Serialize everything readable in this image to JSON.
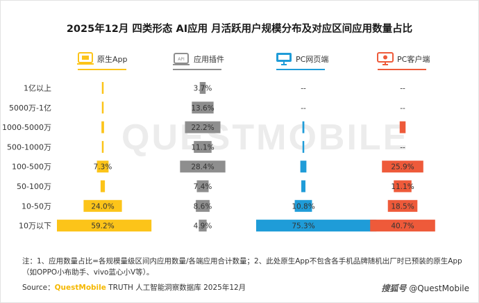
{
  "title": "2025年12月 四类形态 AI应用 月活跃用户规模分布及对应区间应用数量占比",
  "watermark": "QUESTMOBILE",
  "colors": {
    "native": "#fcc419",
    "plugin": "#8e8e8e",
    "pcweb": "#1f9cd8",
    "pcclient": "#ee5a3a"
  },
  "chart_data": {
    "type": "bar",
    "orientation": "horizontal",
    "layout": "butterfly",
    "categories": [
      "1亿以上",
      "5000万-1亿",
      "1000-5000万",
      "500-1000万",
      "100-500万",
      "50-100万",
      "10-50万",
      "10万以下"
    ],
    "series": [
      {
        "name": "原生App",
        "icon": "app-icon",
        "color": "#fcc419",
        "values": [
          0.4,
          0.4,
          1.6,
          0.4,
          7.3,
          2.7,
          24.0,
          59.2
        ],
        "labels": [
          "",
          "",
          "",
          "",
          "7.3%",
          "",
          "24.0%",
          "59.2%"
        ]
      },
      {
        "name": "应用插件",
        "icon": "plugin-icon",
        "color": "#8e8e8e",
        "values": [
          3.7,
          13.6,
          22.2,
          11.1,
          28.4,
          7.4,
          8.6,
          4.9
        ],
        "labels": [
          "3.7%",
          "13.6%",
          "22.2%",
          "11.1%",
          "28.4%",
          "7.4%",
          "8.6%",
          "4.9%"
        ]
      },
      {
        "name": "PC网页端",
        "icon": "monitor-icon",
        "color": "#1f9cd8",
        "values": [
          null,
          null,
          1.2,
          1.0,
          3.8,
          2.6,
          10.8,
          75.3
        ],
        "labels": [
          "--",
          "--",
          "",
          "",
          "",
          "",
          "10.8%",
          "75.3%"
        ]
      },
      {
        "name": "PC客户端",
        "icon": "monitor-icon",
        "color": "#ee5a3a",
        "values": [
          null,
          null,
          3.7,
          null,
          25.9,
          11.1,
          18.5,
          40.7
        ],
        "labels": [
          "--",
          "--",
          "",
          "--",
          "25.9%",
          "11.1%",
          "18.5%",
          "40.7%"
        ]
      }
    ]
  },
  "note": "注：1、应用数量占比=各规模量级区间内应用数量/各端应用合计数量；2、此处原生App不包含各手机品牌随机出厂时已预装的原生App（如OPPO小布助手、vivo蓝心小V等）。",
  "source": {
    "prefix": "Source：",
    "brand": "QuestMobile",
    "suffix": " TRUTH 人工智能洞察数据库 2025年12月"
  },
  "footer": {
    "tag": "搜狐号",
    "handle": "@QuestMobile"
  }
}
